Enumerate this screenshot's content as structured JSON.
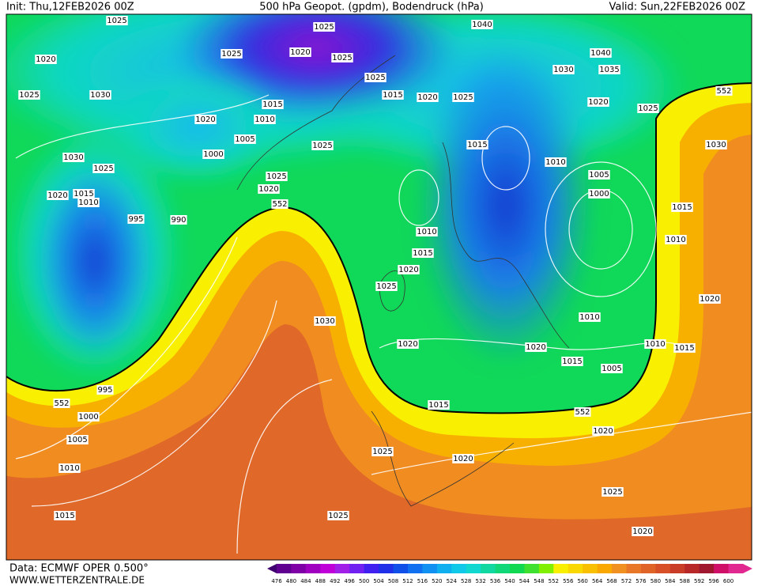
{
  "header": {
    "init": "Init: Thu,12FEB2026 00Z",
    "title": "500 hPa Geopot. (gpdm), Bodendruck (hPa)",
    "valid": "Valid: Sun,22FEB2026 00Z"
  },
  "map": {
    "isobar_labels": [
      "1025",
      "1025",
      "1040",
      "1020",
      "1025",
      "1020",
      "1025",
      "1040",
      "1030",
      "1035",
      "1025",
      "1025",
      "1030",
      "1015",
      "1020",
      "1025",
      "1020",
      "1025",
      "552",
      "1015",
      "1020",
      "1010",
      "1005",
      "1025",
      "1015",
      "1030",
      "1030",
      "1025",
      "1000",
      "1010",
      "1025",
      "1005",
      "1020",
      "1020",
      "1015",
      "1010",
      "1000",
      "552",
      "1015",
      "995",
      "990",
      "1010",
      "1010",
      "1015",
      "1020",
      "1025",
      "1020",
      "1030",
      "1010",
      "1020",
      "1020",
      "1010",
      "1015",
      "1015",
      "1005",
      "995",
      "552",
      "1015",
      "552",
      "1000",
      "1020",
      "1005",
      "1025",
      "1020",
      "1010",
      "1025",
      "1015",
      "1025",
      "1020"
    ]
  },
  "colorbar": {
    "labels": [
      476,
      480,
      484,
      488,
      492,
      496,
      500,
      504,
      508,
      512,
      516,
      520,
      524,
      528,
      532,
      536,
      540,
      544,
      548,
      552,
      556,
      560,
      564,
      568,
      572,
      576,
      580,
      584,
      588,
      592,
      596,
      600
    ]
  },
  "footer": {
    "data": "Data: ECMWF OPER 0.500°",
    "site": "WWW.WETTERZENTRALE.DE"
  }
}
